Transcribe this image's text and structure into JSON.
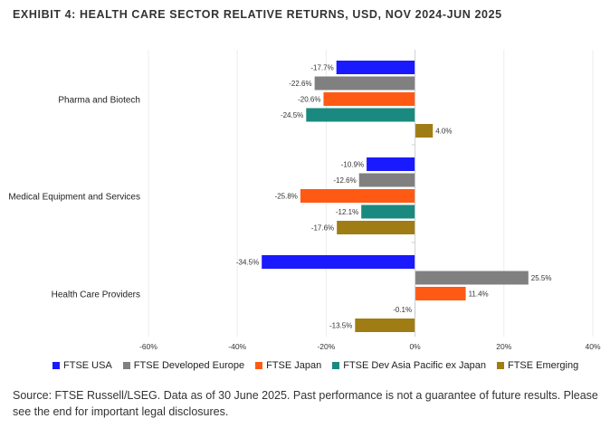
{
  "title": "EXHIBIT 4: HEALTH CARE SECTOR RELATIVE RETURNS, USD, NOV 2024-JUN 2025",
  "source": "Source: FTSE Russell/LSEG. Data as of 30 June 2025. Past performance is not a guarantee of future results. Please see the end for important legal disclosures.",
  "chart_data": {
    "type": "bar",
    "orientation": "horizontal",
    "title": "EXHIBIT 4: HEALTH CARE SECTOR RELATIVE RETURNS, USD, NOV 2024-JUN 2025",
    "categories": [
      "Pharma and Biotech",
      "Medical Equipment and Services",
      "Health Care Providers"
    ],
    "series": [
      {
        "name": "FTSE USA",
        "color": "#1a1aff",
        "values": [
          -17.7,
          -10.9,
          -34.5
        ],
        "labels": [
          "-17.7%",
          "-10.9%",
          "-34.5%"
        ]
      },
      {
        "name": "FTSE Developed Europe",
        "color": "#808080",
        "values": [
          -22.6,
          -12.6,
          25.5
        ],
        "labels": [
          "-22.6%",
          "-12.6%",
          "25.5%"
        ]
      },
      {
        "name": "FTSE Japan",
        "color": "#ff5a14",
        "values": [
          -20.6,
          -25.8,
          11.4
        ],
        "labels": [
          "-20.6%",
          "-25.8%",
          "11.4%"
        ]
      },
      {
        "name": "FTSE Dev Asia Pacific ex Japan",
        "color": "#1a8a80",
        "values": [
          -24.5,
          -12.1,
          -0.1
        ],
        "labels": [
          "-24.5%",
          "-12.1%",
          "-0.1%"
        ]
      },
      {
        "name": "FTSE Emerging",
        "color": "#a07d14",
        "values": [
          4.0,
          -17.6,
          -13.5
        ],
        "labels": [
          "4.0%",
          "-17.6%",
          "-13.5%"
        ]
      }
    ],
    "xlim": [
      -60,
      40
    ],
    "xticks": [
      -60,
      -40,
      -20,
      0,
      20,
      40
    ],
    "xtick_labels": [
      "-60%",
      "-40%",
      "-20%",
      "0%",
      "20%",
      "40%"
    ],
    "xlabel": "",
    "ylabel": "",
    "grid": true,
    "legend_position": "bottom"
  }
}
